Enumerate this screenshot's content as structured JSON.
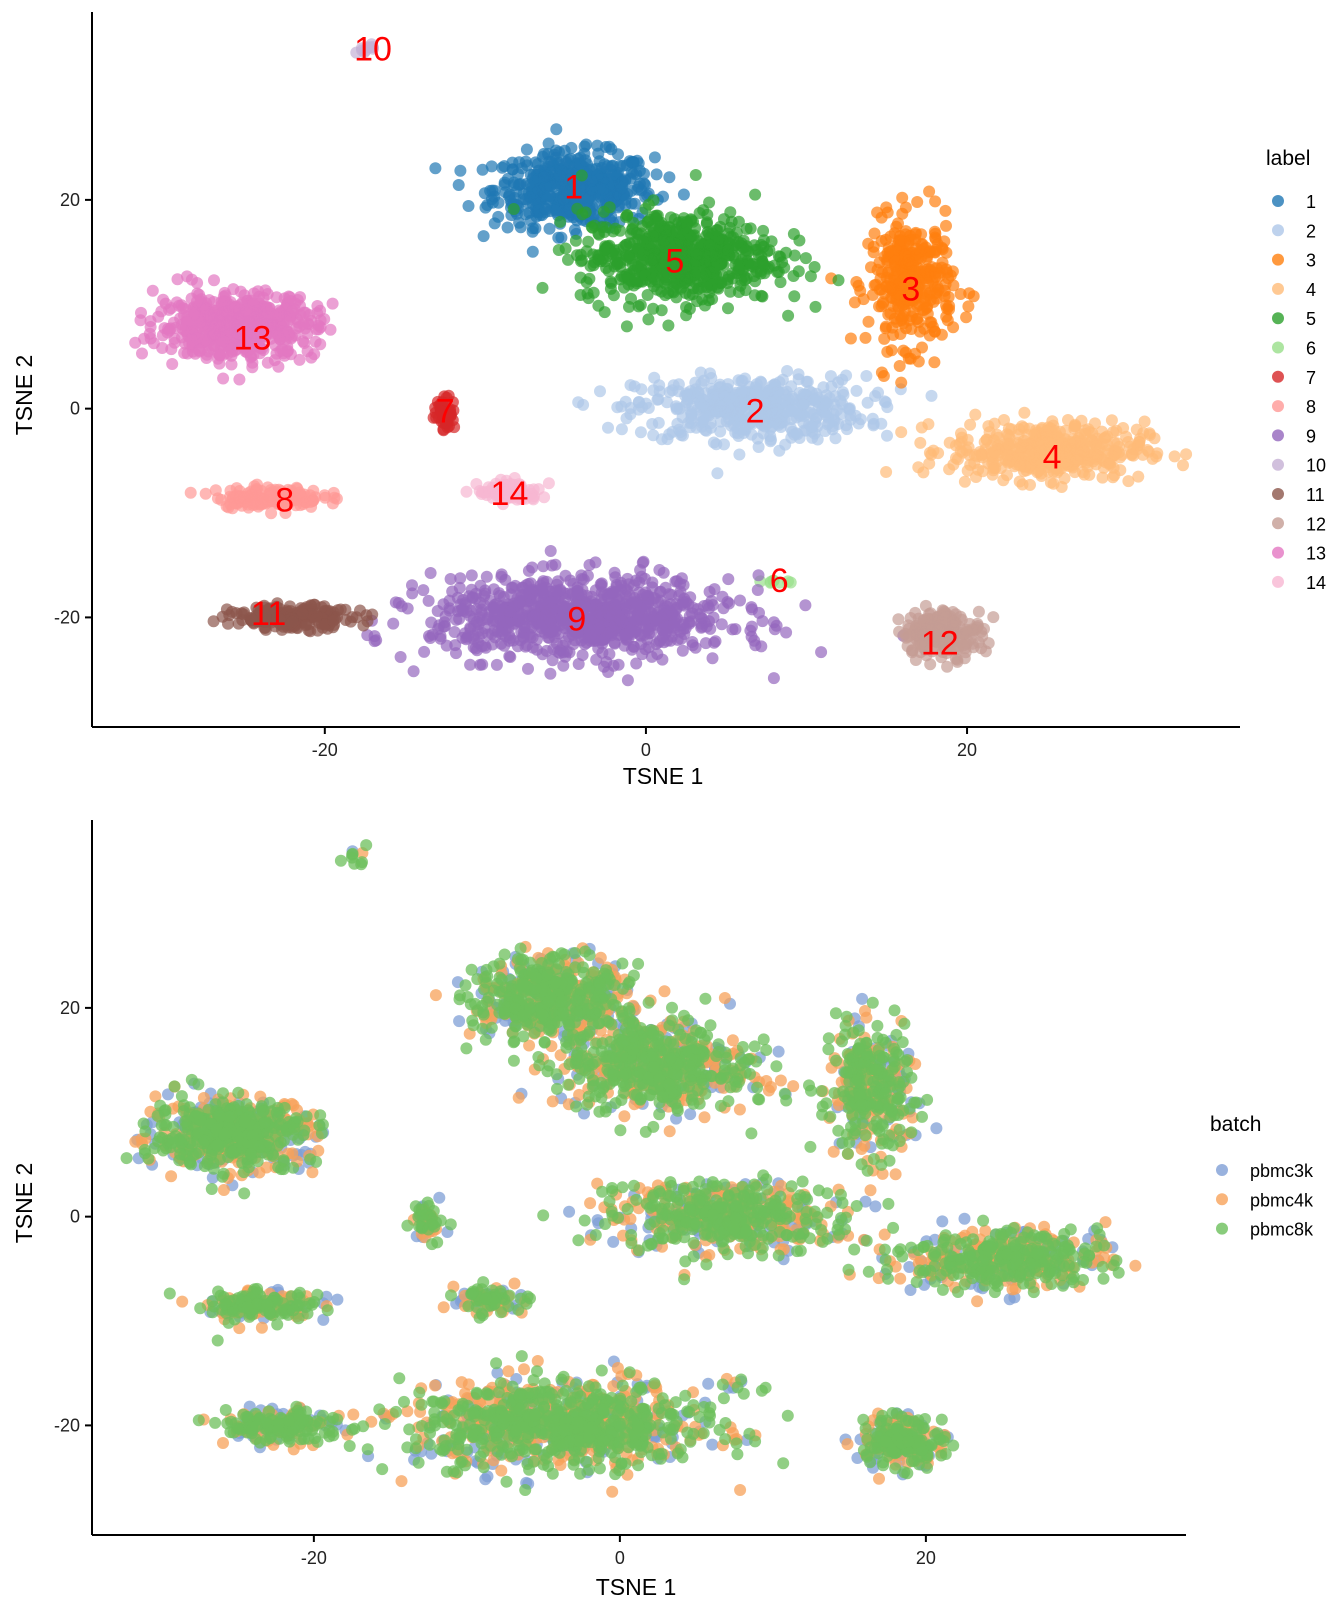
{
  "colors": {
    "label": {
      "1": "#1f77b4",
      "2": "#aec7e8",
      "3": "#ff7f0e",
      "4": "#ffbb78",
      "5": "#2ca02c",
      "6": "#98df8a",
      "7": "#d62728",
      "8": "#ff9896",
      "9": "#9467bd",
      "10": "#c5b0d5",
      "11": "#8c564b",
      "12": "#c49c94",
      "13": "#e377c2",
      "14": "#f7b6d2"
    },
    "batch": {
      "pbmc3k": "#7f9fd6",
      "pbmc4k": "#f7a25a",
      "pbmc8k": "#6cbf5b"
    },
    "cluster_label_text": "#ff0000"
  },
  "chart_data": [
    {
      "type": "scatter",
      "title": "",
      "xlabel": "TSNE 1",
      "ylabel": "TSNE 2",
      "xlim": [
        -34.5,
        37
      ],
      "ylim": [
        -30.5,
        38
      ],
      "xticks": [
        -20,
        0,
        20
      ],
      "yticks": [
        -20,
        0,
        20
      ],
      "grid": false,
      "legend": {
        "title": "label",
        "placement": "right",
        "entries": [
          "1",
          "2",
          "3",
          "4",
          "5",
          "6",
          "7",
          "8",
          "9",
          "10",
          "11",
          "12",
          "13",
          "14"
        ]
      },
      "clusters": [
        {
          "label": "1",
          "center": [
            -4.5,
            21
          ],
          "spread": [
            4.5,
            3.2
          ],
          "n": 520
        },
        {
          "label": "2",
          "center": [
            6.5,
            0
          ],
          "spread": [
            6.5,
            2.8
          ],
          "n": 480
        },
        {
          "label": "3",
          "center": [
            16.5,
            12
          ],
          "spread": [
            2.4,
            5.5
          ],
          "n": 340
        },
        {
          "label": "4",
          "center": [
            25,
            -4
          ],
          "spread": [
            5.5,
            2.5
          ],
          "n": 420
        },
        {
          "label": "5",
          "center": [
            2,
            14.5
          ],
          "spread": [
            5.5,
            4.0
          ],
          "n": 620
        },
        {
          "label": "6",
          "center": [
            8,
            -16.5
          ],
          "spread": [
            1.2,
            0.4
          ],
          "n": 8
        },
        {
          "label": "7",
          "center": [
            -12.5,
            -0.5
          ],
          "spread": [
            0.6,
            1.4
          ],
          "n": 45
        },
        {
          "label": "8",
          "center": [
            -23.5,
            -8.5
          ],
          "spread": [
            3.0,
            0.9
          ],
          "n": 160
        },
        {
          "label": "9",
          "center": [
            -4,
            -20
          ],
          "spread": [
            8.5,
            3.5
          ],
          "n": 900
        },
        {
          "label": "10",
          "center": [
            -17.5,
            34.5
          ],
          "spread": [
            0.5,
            0.4
          ],
          "n": 10
        },
        {
          "label": "11",
          "center": [
            -22,
            -20
          ],
          "spread": [
            3.5,
            1.0
          ],
          "n": 200
        },
        {
          "label": "12",
          "center": [
            18.5,
            -21.5
          ],
          "spread": [
            2.3,
            2.0
          ],
          "n": 200
        },
        {
          "label": "13",
          "center": [
            -25.5,
            8
          ],
          "spread": [
            4.5,
            2.8
          ],
          "n": 560
        },
        {
          "label": "14",
          "center": [
            -8.5,
            -8
          ],
          "spread": [
            1.8,
            0.9
          ],
          "n": 80
        }
      ],
      "cluster_label_positions": [
        {
          "text": "1",
          "x": -4.5,
          "y": 21.3
        },
        {
          "text": "5",
          "x": 1.8,
          "y": 14.2
        },
        {
          "text": "3",
          "x": 16.5,
          "y": 11.5
        },
        {
          "text": "13",
          "x": -24.5,
          "y": 6.8
        },
        {
          "text": "2",
          "x": 6.8,
          "y": -0.2
        },
        {
          "text": "7",
          "x": -12.5,
          "y": -0.2
        },
        {
          "text": "4",
          "x": 25.3,
          "y": -4.6
        },
        {
          "text": "8",
          "x": -22.5,
          "y": -8.7
        },
        {
          "text": "14",
          "x": -8.5,
          "y": -8.1
        },
        {
          "text": "6",
          "x": 8.3,
          "y": -16.4
        },
        {
          "text": "11",
          "x": -23.5,
          "y": -19.6
        },
        {
          "text": "9",
          "x": -4.3,
          "y": -20.1
        },
        {
          "text": "12",
          "x": 18.3,
          "y": -22.4
        },
        {
          "text": "10",
          "x": -17,
          "y": 34.5
        }
      ]
    },
    {
      "type": "scatter",
      "title": "",
      "xlabel": "TSNE 1",
      "ylabel": "TSNE 2",
      "xlim": [
        -34.5,
        37
      ],
      "ylim": [
        -30.5,
        38
      ],
      "xticks": [
        -20,
        0,
        20
      ],
      "yticks": [
        -20,
        0,
        20
      ],
      "grid": false,
      "legend": {
        "title": "batch",
        "placement": "right",
        "entries": [
          "pbmc3k",
          "pbmc4k",
          "pbmc8k"
        ]
      },
      "series_mix": {
        "pbmc3k": 0.2,
        "pbmc4k": 0.3,
        "pbmc8k": 0.5
      }
    }
  ]
}
